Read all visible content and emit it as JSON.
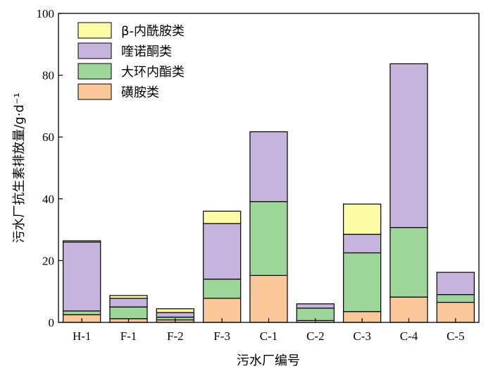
{
  "chart_data": {
    "type": "bar",
    "stacked": true,
    "title": "",
    "xlabel": "污水厂编号",
    "ylabel": "污水厂抗生素排放量/g·d⁻¹",
    "ylim": [
      0,
      100
    ],
    "yticks": [
      0,
      20,
      40,
      60,
      80,
      100
    ],
    "grid": false,
    "legend_position": "top-left",
    "categories": [
      "H-1",
      "F-1",
      "F-2",
      "F-3",
      "C-1",
      "C-2",
      "C-3",
      "C-4",
      "C-5"
    ],
    "series": [
      {
        "name": "磺胺类",
        "color": "#fac898",
        "values": [
          2.5,
          1.2,
          0.8,
          7.8,
          15.2,
          0.6,
          3.5,
          8.2,
          6.5
        ]
      },
      {
        "name": "大环内酯类",
        "color": "#9ed69a",
        "values": [
          1.2,
          3.8,
          0.9,
          6.2,
          23.9,
          4.0,
          19.0,
          22.5,
          2.5
        ]
      },
      {
        "name": "喹诺酮类",
        "color": "#c5b5dd",
        "values": [
          22.3,
          2.8,
          1.5,
          18.0,
          22.6,
          1.4,
          6.0,
          53.0,
          7.2
        ]
      },
      {
        "name": "β-内酰胺类",
        "color": "#fffca8",
        "values": [
          0.4,
          0.9,
          1.2,
          4.0,
          0.0,
          0.0,
          9.8,
          0.0,
          0.0
        ]
      }
    ]
  }
}
